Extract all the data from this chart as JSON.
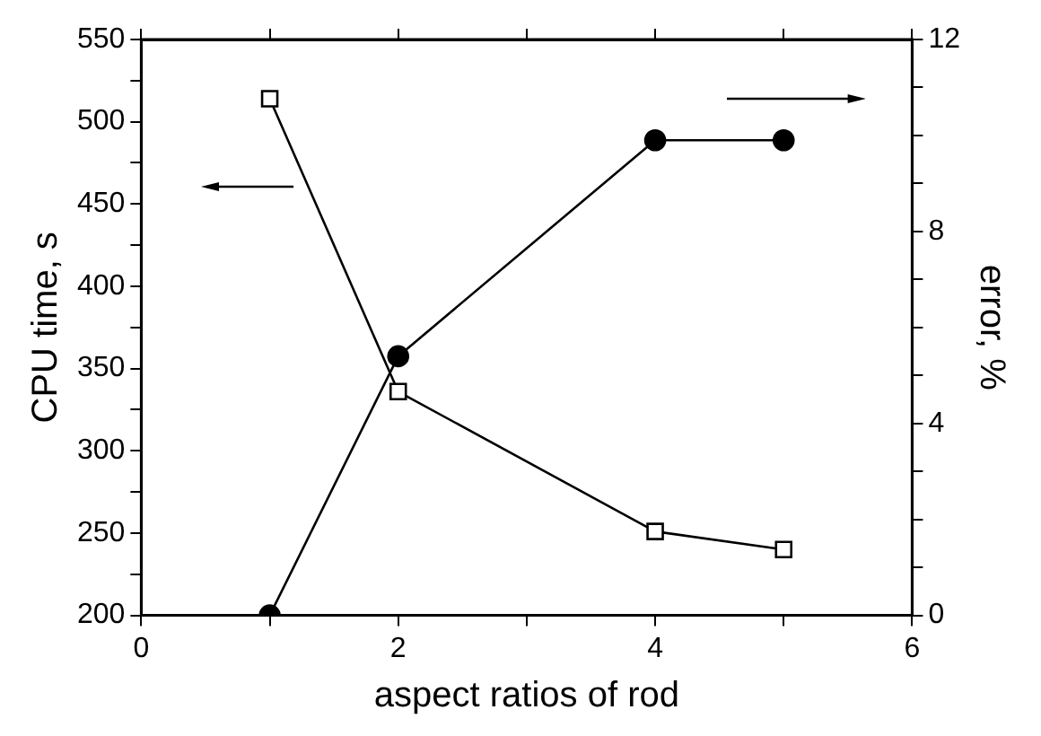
{
  "chart_data": {
    "type": "line",
    "xlabel": "aspect ratios of rod",
    "ylabel": "CPU time, s",
    "y2label": "error, %",
    "xlim": [
      0,
      6
    ],
    "xticks": [
      0,
      {
        "value": 1,
        "label": null
      },
      2,
      {
        "value": 3,
        "label": null
      },
      4,
      {
        "value": 5,
        "label": null
      },
      6
    ],
    "ylim": [
      200,
      550
    ],
    "yticks": [
      200,
      {
        "value": 225,
        "label": null
      },
      250,
      {
        "value": 275,
        "label": null
      },
      300,
      {
        "value": 325,
        "label": null
      },
      350,
      {
        "value": 375,
        "label": null
      },
      400,
      {
        "value": 425,
        "label": null
      },
      450,
      {
        "value": 475,
        "label": null
      },
      500,
      {
        "value": 525,
        "label": null
      },
      550
    ],
    "y2lim": [
      0,
      12
    ],
    "y2ticks": [
      0,
      {
        "value": 1,
        "label": null
      },
      {
        "value": 2,
        "label": null
      },
      {
        "value": 3,
        "label": null
      },
      4,
      {
        "value": 5,
        "label": null
      },
      {
        "value": 6,
        "label": null
      },
      {
        "value": 7,
        "label": null
      },
      8,
      {
        "value": 9,
        "label": null
      },
      {
        "value": 10,
        "label": null
      },
      {
        "value": 11,
        "label": null
      },
      12
    ],
    "grid": false,
    "legend": false,
    "series": [
      {
        "color": "#000000",
        "marker": "square",
        "x": [
          1,
          2,
          4,
          5
        ],
        "values": [
          514,
          336,
          251,
          240
        ]
      },
      {
        "color": "#000000",
        "marker": "circle",
        "axis": "y2",
        "x": [
          1,
          2,
          4,
          5
        ],
        "values": [
          0,
          5.4,
          9.9,
          9.9
        ]
      }
    ]
  }
}
